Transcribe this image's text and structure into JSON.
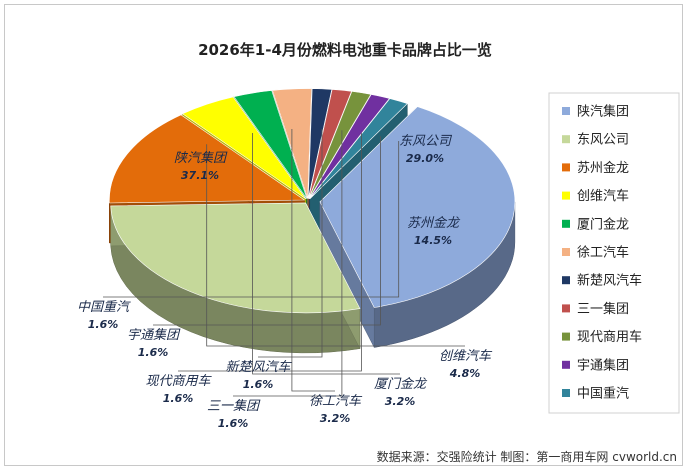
{
  "chart_data": {
    "type": "pie",
    "title": "2026年1-4月份燃料电池重卡品牌占比一览",
    "categories": [
      "陕汽集团",
      "东风公司",
      "苏州金龙",
      "创维汽车",
      "厦门金龙",
      "徐工汽车",
      "新楚风汽车",
      "三一集团",
      "现代商用车",
      "宇通集团",
      "中国重汽"
    ],
    "values": [
      37.1,
      29.0,
      14.5,
      4.8,
      3.2,
      3.2,
      1.6,
      1.6,
      1.6,
      1.6,
      1.6
    ],
    "value_labels": [
      "37.1%",
      "29.0%",
      "14.5%",
      "4.8%",
      "3.2%",
      "3.2%",
      "1.6%",
      "1.6%",
      "1.6%",
      "1.6%",
      "1.6%"
    ],
    "colors": [
      "#8eaadb",
      "#c5d89a",
      "#e36c0a",
      "#ffff00",
      "#00b050",
      "#f4b183",
      "#1f3864",
      "#c0504d",
      "#77933c",
      "#7030a0",
      "#31849b"
    ],
    "legend_position": "right",
    "style": "3d-exploded"
  },
  "source_note": "数据来源：交强险统计 制图：第一商用车网 cvworld.cn"
}
